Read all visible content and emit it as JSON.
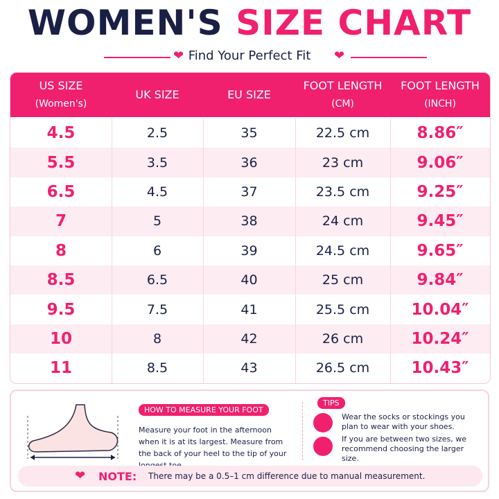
{
  "header": {
    "title_part1": "WOMEN'S",
    "title_part2": "SIZE CHART",
    "subtitle": "Find Your Perfect Fit"
  },
  "table": {
    "columns": [
      [
        "US SIZE",
        "(Women's)"
      ],
      [
        "UK SIZE"
      ],
      [
        "EU SIZE"
      ],
      [
        "FOOT LENGTH",
        "(CM)"
      ],
      [
        "FOOT LENGTH",
        "(INCH)"
      ]
    ],
    "rows": [
      [
        "4.5",
        "2.5",
        "35",
        "22.5 cm",
        "8.86″"
      ],
      [
        "5.5",
        "3.5",
        "36",
        "23 cm",
        "9.06″"
      ],
      [
        "6.5",
        "4.5",
        "37",
        "23.5 cm",
        "9.25″"
      ],
      [
        "7",
        "5",
        "38",
        "24 cm",
        "9.45″"
      ],
      [
        "8",
        "6",
        "39",
        "24.5 cm",
        "9.65″"
      ],
      [
        "8.5",
        "6.5",
        "40",
        "25 cm",
        "9.84″"
      ],
      [
        "9.5",
        "7.5",
        "41",
        "25.5 cm",
        "10.04″"
      ],
      [
        "10",
        "8",
        "42",
        "26 cm",
        "10.24″"
      ],
      [
        "11",
        "8.5",
        "43",
        "26.5 cm",
        "10.43″"
      ]
    ]
  },
  "measure": {
    "title": "HOW TO MEASURE YOUR FOOT",
    "text": "Measure your foot in the afternoon when it is at its largest. Measure from the back of your heel to the tip of your longest toe."
  },
  "tips": {
    "title": "TIPS",
    "items": [
      "Wear the socks or stockings you plan to wear with your shoes.",
      "If you are between two sizes, we recommend choosing the larger size."
    ]
  },
  "note": {
    "label": "NOTE:",
    "text": "There may be a 0.5–1 cm difference due to manual measurement."
  }
}
